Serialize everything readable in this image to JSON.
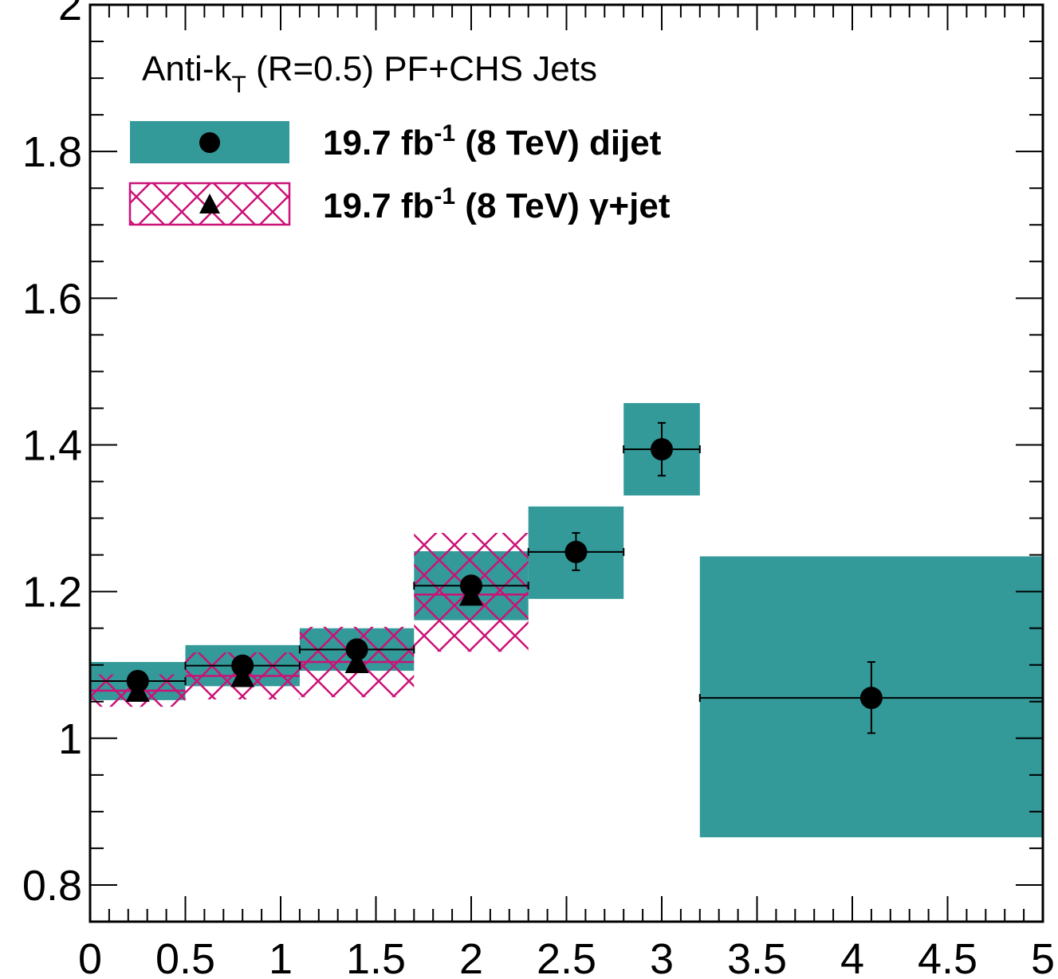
{
  "chart_data": {
    "type": "scatter",
    "title": "",
    "xlabel": "",
    "ylabel": "",
    "xlim": [
      0,
      5
    ],
    "ylim": [
      0.75,
      2.0
    ],
    "x_ticks": [
      "0",
      "0.5",
      "1",
      "1.5",
      "2",
      "2.5",
      "3",
      "3.5",
      "4",
      "4.5",
      "5"
    ],
    "y_ticks": [
      "0.8",
      "1",
      "1.2",
      "1.4",
      "1.6",
      "1.8",
      "2"
    ],
    "annotation": {
      "main": "Anti-k",
      "sub": "T",
      "rest": " (R=0.5) PF+CHS Jets"
    },
    "legend_position": "top-left",
    "colors": {
      "dijet_band": "#339999",
      "gamma_hatch": "#cc1177",
      "marker": "#000000"
    },
    "series": [
      {
        "name": "19.7 fb-1 (8 TeV) dijet",
        "legend": {
          "pre": "19.7 fb",
          "sup": "-1",
          "post": " (8 TeV) dijet"
        },
        "marker": "circle",
        "points": [
          {
            "x": 0.25,
            "xlo": 0.0,
            "xhi": 0.5,
            "y": 1.078,
            "ylo": 1.078,
            "yhi": 1.078,
            "band": [
              1.052,
              1.104
            ]
          },
          {
            "x": 0.8,
            "xlo": 0.5,
            "xhi": 1.1,
            "y": 1.099,
            "ylo": 1.099,
            "yhi": 1.099,
            "band": [
              1.071,
              1.127
            ]
          },
          {
            "x": 1.4,
            "xlo": 1.1,
            "xhi": 1.7,
            "y": 1.121,
            "ylo": 1.121,
            "yhi": 1.121,
            "band": [
              1.092,
              1.15
            ]
          },
          {
            "x": 2.0,
            "xlo": 1.7,
            "xhi": 2.3,
            "y": 1.208,
            "ylo": 1.195,
            "yhi": 1.221,
            "band": [
              1.161,
              1.255
            ]
          },
          {
            "x": 2.55,
            "xlo": 2.3,
            "xhi": 2.8,
            "y": 1.254,
            "ylo": 1.229,
            "yhi": 1.28,
            "band": [
              1.19,
              1.316
            ]
          },
          {
            "x": 3.0,
            "xlo": 2.8,
            "xhi": 3.2,
            "y": 1.394,
            "ylo": 1.358,
            "yhi": 1.43,
            "band": [
              1.331,
              1.457
            ]
          },
          {
            "x": 4.1,
            "xlo": 3.2,
            "xhi": 5.0,
            "y": 1.055,
            "ylo": 1.007,
            "yhi": 1.104,
            "band": [
              0.865,
              1.248
            ]
          }
        ]
      },
      {
        "name": "19.7 fb-1 (8 TeV) γ+jet",
        "legend": {
          "pre": "19.7 fb",
          "sup": "-1",
          "post": " (8 TeV) γ+jet"
        },
        "marker": "triangle",
        "points": [
          {
            "x": 0.25,
            "xlo": 0.0,
            "xhi": 0.5,
            "y": 1.065,
            "band": [
              1.043,
              1.087
            ]
          },
          {
            "x": 0.8,
            "xlo": 0.5,
            "xhi": 1.1,
            "y": 1.085,
            "band": [
              1.053,
              1.117
            ]
          },
          {
            "x": 1.4,
            "xlo": 1.1,
            "xhi": 1.7,
            "y": 1.104,
            "band": [
              1.056,
              1.152
            ]
          },
          {
            "x": 2.0,
            "xlo": 1.7,
            "xhi": 2.3,
            "y": 1.196,
            "band": [
              1.118,
              1.28
            ]
          }
        ]
      }
    ]
  }
}
